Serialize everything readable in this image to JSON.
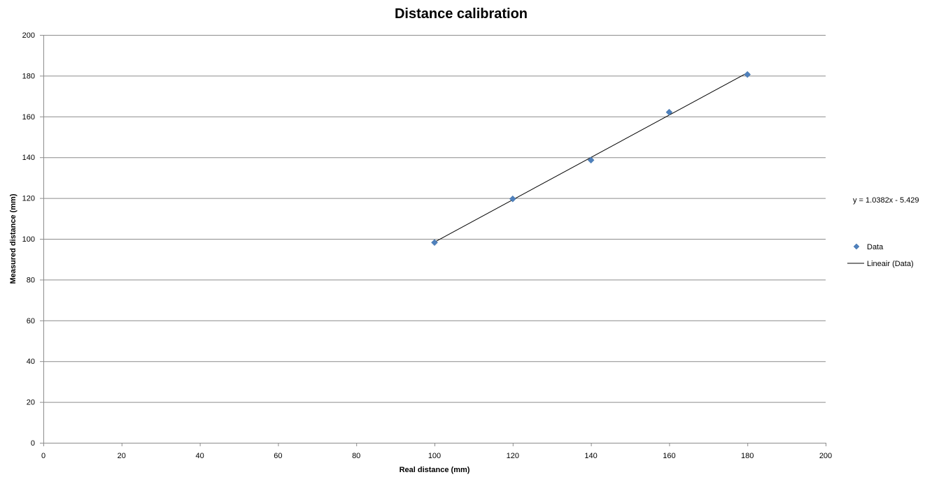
{
  "chart_data": {
    "type": "scatter",
    "title": "Distance calibration",
    "xlabel": "Real distance (mm)",
    "ylabel": "Measured distance (mm)",
    "xlim": [
      0,
      200
    ],
    "ylim": [
      0,
      200
    ],
    "x_ticks": [
      "0",
      "20",
      "40",
      "60",
      "80",
      "100",
      "120",
      "140",
      "160",
      "180",
      "200"
    ],
    "y_ticks": [
      "0",
      "20",
      "40",
      "60",
      "80",
      "100",
      "120",
      "140",
      "160",
      "180",
      "200"
    ],
    "grid": "horizontal",
    "legend_position": "right",
    "series": [
      {
        "name": "Data",
        "marker": "diamond",
        "color": "#4F81BD",
        "x": [
          100,
          120,
          140,
          160,
          180
        ],
        "y": [
          98.2,
          119.6,
          138.6,
          162.1,
          180.6
        ]
      }
    ],
    "trendline": {
      "name": "Lineair (Data)",
      "color": "#000000",
      "slope": 1.0382,
      "intercept": -5.429,
      "x_range": [
        100,
        180
      ],
      "equation_label": "y = 1.0382x - 5.429"
    }
  }
}
